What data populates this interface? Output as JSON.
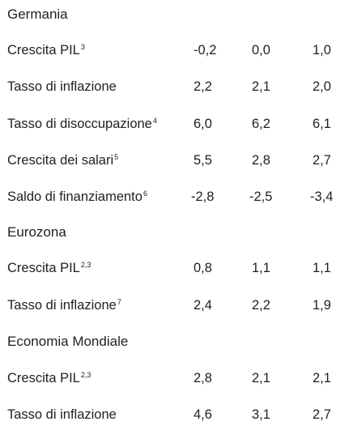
{
  "sections": [
    {
      "title": "Germania",
      "rows": [
        {
          "label": "Crescita PIL",
          "sup": "3",
          "values": [
            "-0,2",
            "0,0",
            "1,0"
          ]
        },
        {
          "label": "Tasso di inflazione",
          "sup": "",
          "values": [
            "2,2",
            "2,1",
            "2,0"
          ]
        },
        {
          "label": "Tasso di disoccupazione",
          "sup": "4",
          "values": [
            "6,0",
            "6,2",
            "6,1"
          ]
        },
        {
          "label": "Crescita dei salari",
          "sup": "5",
          "values": [
            "5,5",
            "2,8",
            "2,7"
          ]
        },
        {
          "label": "Saldo di finanziamento",
          "sup": "6",
          "values": [
            "-2,8",
            "-2,5",
            "-3,4"
          ]
        }
      ]
    },
    {
      "title": "Eurozona",
      "rows": [
        {
          "label": "Crescita PIL",
          "sup": "2,3",
          "values": [
            "0,8",
            "1,1",
            "1,1"
          ]
        },
        {
          "label": "Tasso di inflazione",
          "sup": "7",
          "values": [
            "2,4",
            "2,2",
            "1,9"
          ]
        }
      ]
    },
    {
      "title": "Economia Mondiale",
      "rows": [
        {
          "label": "Crescita PIL",
          "sup": "2,3",
          "values": [
            "2,8",
            "2,1",
            "2,1"
          ]
        },
        {
          "label": "Tasso di inflazione",
          "sup": "",
          "values": [
            "4,6",
            "3,1",
            "2,7"
          ]
        }
      ]
    }
  ]
}
